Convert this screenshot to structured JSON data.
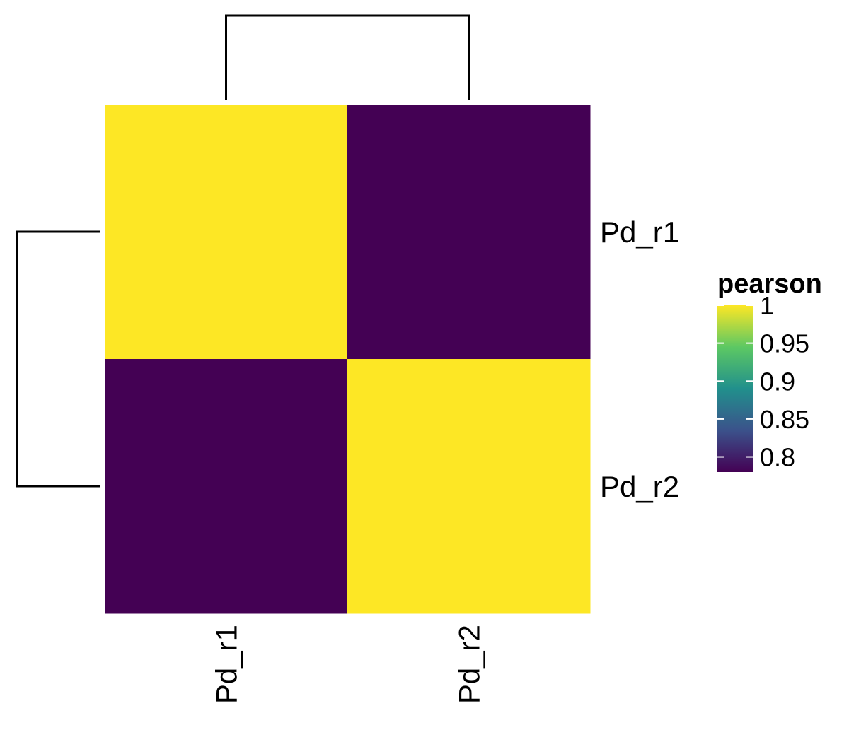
{
  "chart_data": {
    "type": "heatmap",
    "rows": [
      "Pd_r1",
      "Pd_r2"
    ],
    "columns": [
      "Pd_r1",
      "Pd_r2"
    ],
    "values": [
      [
        1.0,
        0.78
      ],
      [
        0.78,
        1.0
      ]
    ],
    "color_scale": {
      "name": "viridis",
      "min": 0.78,
      "max": 1.0,
      "stops": [
        "#440154",
        "#3B528B",
        "#21908C",
        "#5DC863",
        "#FDE725"
      ]
    },
    "legend": {
      "title": "pearson",
      "ticks": [
        1,
        0.95,
        0.9,
        0.85,
        0.8
      ],
      "tick_labels": [
        "1",
        "0.95",
        "0.9",
        "0.85",
        "0.8"
      ],
      "placement": "right"
    },
    "row_dendrogram": true,
    "column_dendrogram": true,
    "title": "",
    "xlabel": "",
    "ylabel": ""
  }
}
